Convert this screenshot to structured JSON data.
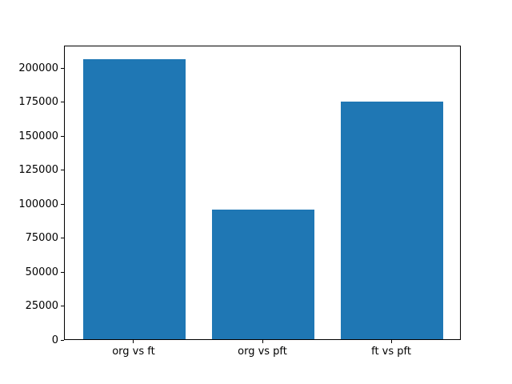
{
  "figure": {
    "background": "#ffffff"
  },
  "chart_data": {
    "type": "bar",
    "categories": [
      "org vs ft",
      "org vs pft",
      "ft vs pft"
    ],
    "values": [
      206000,
      95500,
      175000
    ],
    "title": "",
    "xlabel": "",
    "ylabel": "",
    "bar_color": "#1f77b4",
    "axis_color": "#000000",
    "tick_label_color": "#000000",
    "ylim": [
      0,
      216500
    ],
    "yticks": [
      0,
      25000,
      50000,
      75000,
      100000,
      125000,
      150000,
      175000,
      200000
    ],
    "xlim": [
      -0.54,
      2.54
    ],
    "bar_positions": [
      0,
      1,
      2
    ],
    "bar_width": 0.8,
    "grid": false,
    "legend": "none"
  }
}
